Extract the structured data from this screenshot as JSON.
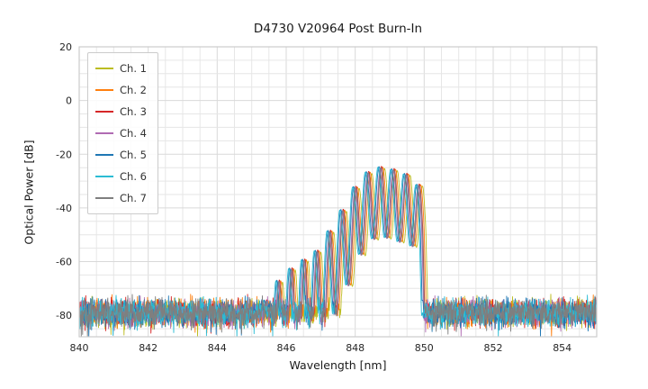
{
  "figure": {
    "title": "D4730 V20964 Post Burn-In",
    "xlabel": "Wavelength [nm]",
    "ylabel": "Optical Power [dB]"
  },
  "chart_data": {
    "type": "line",
    "title": "D4730 V20964 Post Burn-In",
    "xlabel": "Wavelength [nm]",
    "ylabel": "Optical Power [dB]",
    "xlim": [
      840,
      855
    ],
    "ylim": [
      -88,
      20
    ],
    "xticks": [
      840,
      842,
      844,
      846,
      848,
      850,
      852,
      854
    ],
    "yticks": [
      20,
      0,
      -20,
      -40,
      -60,
      -80
    ],
    "grid": {
      "x_step": 0.5,
      "y_step": 5,
      "minor_color": "#e6e6e6",
      "major_color": "#d9d9d9"
    },
    "border_color": "#cccccc",
    "legend_position": "upper-left",
    "noise_floor": {
      "mean_db": -79,
      "spread_db": 4.5
    },
    "fringe": {
      "period_nm": 0.37,
      "center_nm": 848.75,
      "notch_depth_db": 26
    },
    "envelope_points": [
      [
        844.8,
        -95
      ],
      [
        845.2,
        -80
      ],
      [
        845.6,
        -70
      ],
      [
        846.0,
        -64
      ],
      [
        846.45,
        -60
      ],
      [
        846.9,
        -56
      ],
      [
        847.15,
        -51
      ],
      [
        847.5,
        -44
      ],
      [
        847.85,
        -36
      ],
      [
        848.15,
        -29
      ],
      [
        848.45,
        -26
      ],
      [
        848.75,
        -24.8
      ],
      [
        849.05,
        -25.3
      ],
      [
        849.35,
        -26.8
      ],
      [
        849.6,
        -27.8
      ],
      [
        849.8,
        -28.8
      ],
      [
        849.95,
        -36
      ],
      [
        850.03,
        -62
      ],
      [
        850.12,
        -92
      ]
    ],
    "series": [
      {
        "name": "Ch. 1",
        "color": "#bcbd22",
        "offset_nm": 0.1,
        "peak_shift_db": -0.5,
        "seed": 11
      },
      {
        "name": "Ch. 2",
        "color": "#ff7f0e",
        "offset_nm": 0.05,
        "peak_shift_db": 0.0,
        "seed": 22
      },
      {
        "name": "Ch. 3",
        "color": "#d62728",
        "offset_nm": 0.01,
        "peak_shift_db": 0.3,
        "seed": 33
      },
      {
        "name": "Ch. 4",
        "color": "#b06bb3",
        "offset_nm": -0.02,
        "peak_shift_db": -0.3,
        "seed": 44
      },
      {
        "name": "Ch. 5",
        "color": "#1f77b4",
        "offset_nm": -0.06,
        "peak_shift_db": 0.2,
        "seed": 55
      },
      {
        "name": "Ch. 6",
        "color": "#2bbcd4",
        "offset_nm": -0.09,
        "peak_shift_db": 0.0,
        "seed": 66
      },
      {
        "name": "Ch. 7",
        "color": "#7f7f7f",
        "offset_nm": 0.0,
        "peak_shift_db": -0.2,
        "seed": 77
      }
    ]
  }
}
